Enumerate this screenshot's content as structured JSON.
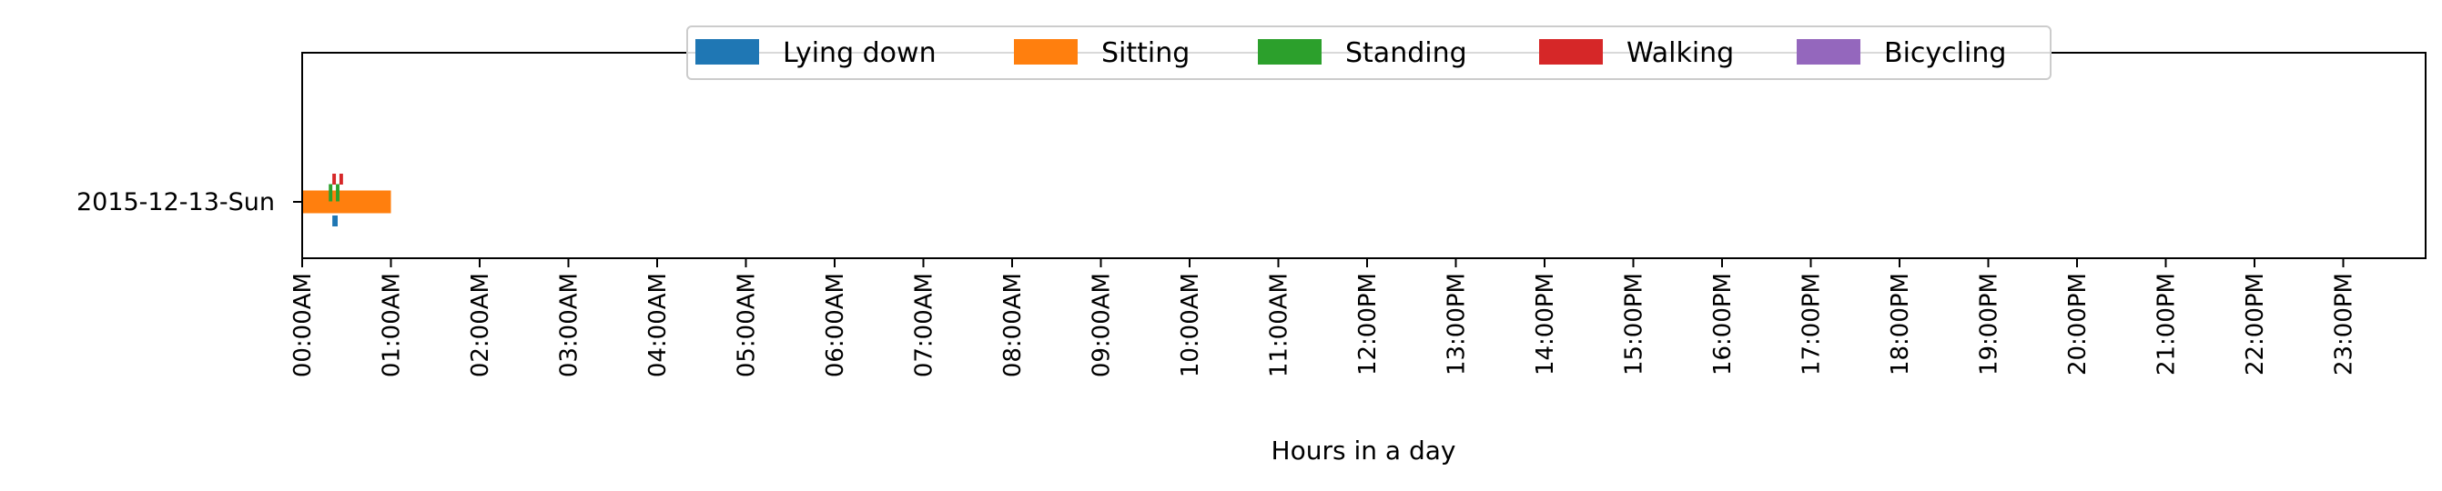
{
  "chart_data": {
    "type": "bar",
    "orientation": "horizontal-timeline",
    "title": "",
    "xlabel": "Hours in a day",
    "ylabel": "",
    "xlim": [
      0,
      24
    ],
    "x_ticks": [
      "00:00AM",
      "01:00AM",
      "02:00AM",
      "03:00AM",
      "04:00AM",
      "05:00AM",
      "06:00AM",
      "07:00AM",
      "08:00AM",
      "09:00AM",
      "10:00AM",
      "11:00AM",
      "12:00PM",
      "13:00PM",
      "14:00PM",
      "15:00PM",
      "16:00PM",
      "17:00PM",
      "18:00PM",
      "19:00PM",
      "20:00PM",
      "21:00PM",
      "22:00PM",
      "23:00PM"
    ],
    "categories": [
      "2015-12-13-Sun"
    ],
    "grid": false,
    "legend_position": "upper center",
    "series": [
      {
        "name": "Lying down",
        "color": "#1f77b4",
        "segments": [
          {
            "category": "2015-12-13-Sun",
            "start": 0.34,
            "end": 0.4
          }
        ]
      },
      {
        "name": "Sitting",
        "color": "#ff7f0e",
        "segments": [
          {
            "category": "2015-12-13-Sun",
            "start": 0.0,
            "end": 1.0
          }
        ]
      },
      {
        "name": "Standing",
        "color": "#2ca02c",
        "segments": [
          {
            "category": "2015-12-13-Sun",
            "start": 0.3,
            "end": 0.34
          },
          {
            "category": "2015-12-13-Sun",
            "start": 0.38,
            "end": 0.42
          }
        ]
      },
      {
        "name": "Walking",
        "color": "#d62728",
        "segments": [
          {
            "category": "2015-12-13-Sun",
            "start": 0.34,
            "end": 0.38
          },
          {
            "category": "2015-12-13-Sun",
            "start": 0.42,
            "end": 0.46
          }
        ]
      },
      {
        "name": "Bicycling",
        "color": "#9467bd",
        "segments": []
      }
    ]
  }
}
